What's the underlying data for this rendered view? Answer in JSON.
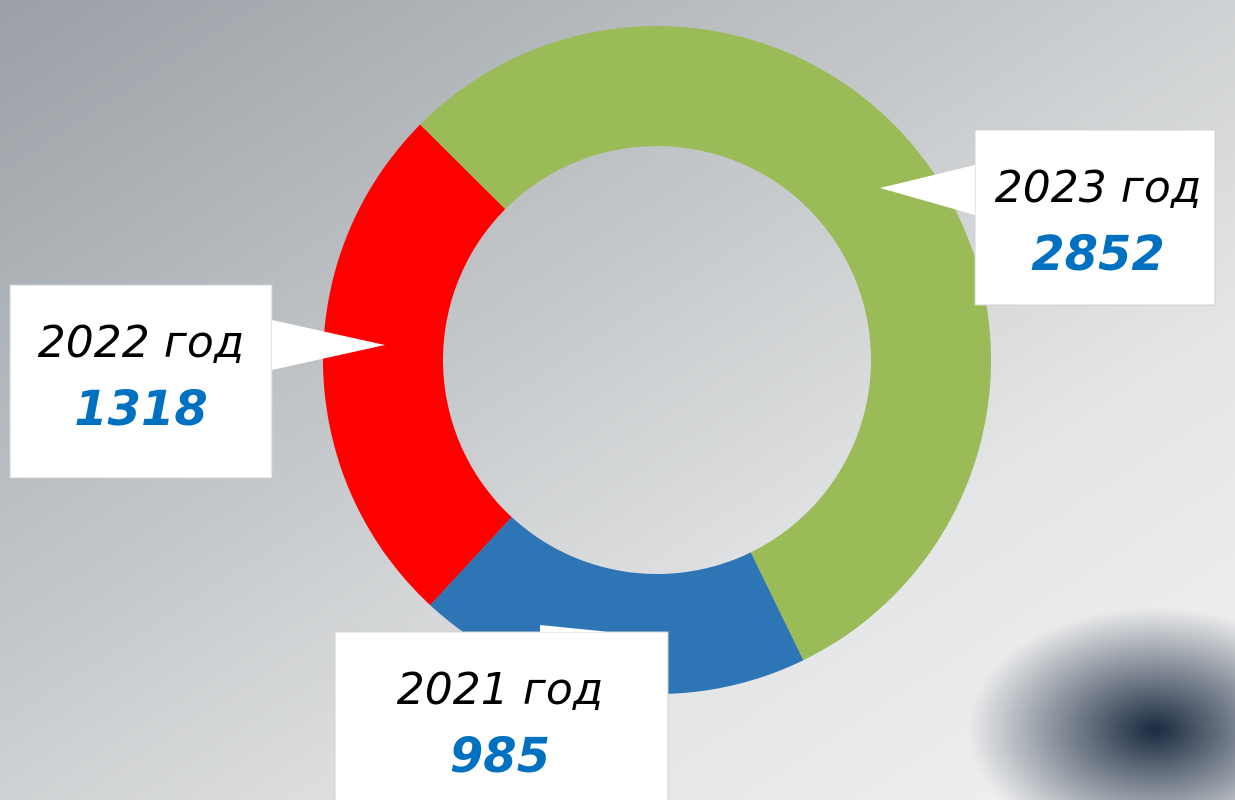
{
  "chart_data": {
    "type": "donut",
    "categories": [
      "2021 год",
      "2022 год",
      "2023 год"
    ],
    "values": [
      985,
      1318,
      2852
    ],
    "colors": [
      "#2e75b6",
      "#ff0000",
      "#9bbb59"
    ],
    "first_slice_angle": 154
  }
}
